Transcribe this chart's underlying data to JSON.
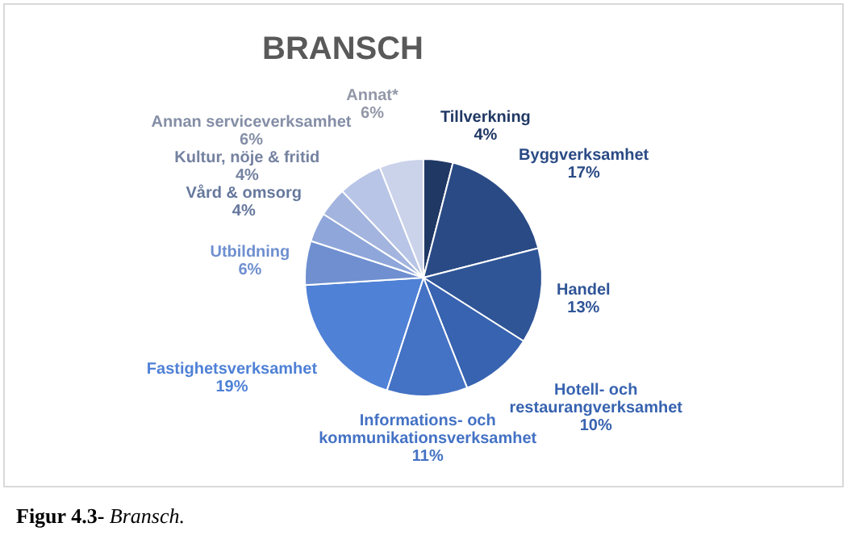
{
  "chart_data": {
    "type": "pie",
    "title": "BRANSCH",
    "categories": [
      "Tillverkning",
      "Byggverksamhet",
      "Handel",
      "Hotell- och restaurangverksamhet",
      "Informations- och kommunikationsverksamhet",
      "Fastighetsverksamhet",
      "Utbildning",
      "Vård & omsorg",
      "Kultur, nöje & fritid",
      "Annan serviceverksamhet",
      "Annat*"
    ],
    "values": [
      4,
      17,
      13,
      10,
      11,
      19,
      6,
      4,
      4,
      6,
      6
    ],
    "value_labels": [
      "4%",
      "17%",
      "13%",
      "10%",
      "11%",
      "19%",
      "6%",
      "4%",
      "4%",
      "6%",
      "6%"
    ],
    "colors": [
      "#203864",
      "#2a4a85",
      "#2f5597",
      "#3763b0",
      "#4472c4",
      "#4f81d6",
      "#6f8fd0",
      "#8ea6da",
      "#a3b4de",
      "#b8c5e6",
      "#cbd3ea"
    ],
    "legend": false,
    "annotations": [
      "Figur 4.3- Bransch."
    ]
  }
}
